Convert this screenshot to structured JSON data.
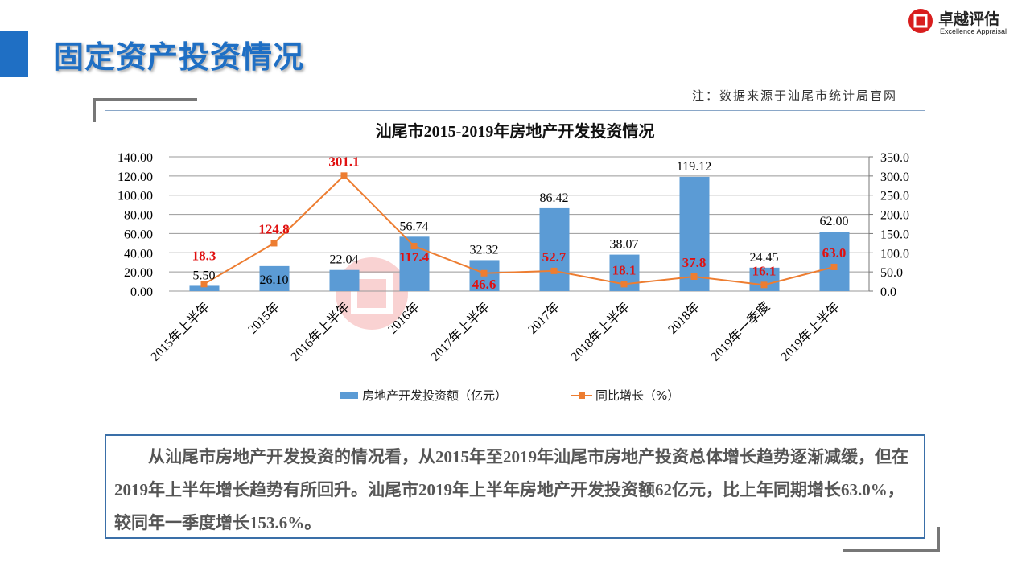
{
  "header": {
    "title": "固定资产投资情况",
    "logo_cn": "卓越评估",
    "logo_en": "Excellence Appraisal"
  },
  "note": "注：数据来源于汕尾市统计局官网",
  "watermark": {
    "cn": "卓越评估",
    "en": "Excellence Appraisal"
  },
  "colors": {
    "bar": "#5b9bd5",
    "line": "#ed7d31",
    "line_label": "#e01010",
    "title": "#1f6fc4"
  },
  "chart_data": {
    "type": "bar+line",
    "title": "汕尾市2015-2019年房地产开发投资情况",
    "categories": [
      "2015年上半年",
      "2015年",
      "2016年上半年",
      "2016年",
      "2017年上半年",
      "2017年",
      "2018年上半年",
      "2018年",
      "2019年一季度",
      "2019年上半年"
    ],
    "series": [
      {
        "name": "房地产开发投资额（亿元）",
        "type": "bar",
        "axis": "left",
        "values": [
          5.5,
          26.1,
          22.04,
          56.74,
          32.32,
          86.42,
          38.07,
          119.12,
          24.45,
          62.0
        ],
        "labels": [
          "5.50",
          "26.10",
          "22.04",
          "56.74",
          "32.32",
          "86.42",
          "38.07",
          "119.12",
          "24.45",
          "62.00"
        ]
      },
      {
        "name": "同比增长（%）",
        "type": "line",
        "axis": "right",
        "values": [
          18.3,
          124.8,
          301.1,
          117.4,
          46.6,
          52.7,
          18.1,
          37.8,
          16.1,
          63.0
        ],
        "labels": [
          "18.3",
          "124.8",
          "301.1",
          "117.4",
          "46.6",
          "52.7",
          "18.1",
          "37.8",
          "16.1",
          "63.0"
        ]
      }
    ],
    "left_axis": {
      "range": [
        0,
        140
      ],
      "ticks": [
        "0.00",
        "20.00",
        "40.00",
        "60.00",
        "80.00",
        "100.00",
        "120.00",
        "140.00"
      ]
    },
    "right_axis": {
      "range": [
        0,
        350
      ],
      "ticks": [
        "0.0",
        "50.0",
        "100.0",
        "150.0",
        "200.0",
        "250.0",
        "300.0",
        "350.0"
      ]
    },
    "grid": true,
    "legend": "bottom"
  },
  "summary": "从汕尾市房地产开发投资的情况看，从2015年至2019年汕尾市房地产投资总体增长趋势逐渐减缓，但在2019年上半年增长趋势有所回升。汕尾市2019年上半年房地产开发投资额62亿元，比上年同期增长63.0%，较同年一季度增长153.6%。"
}
